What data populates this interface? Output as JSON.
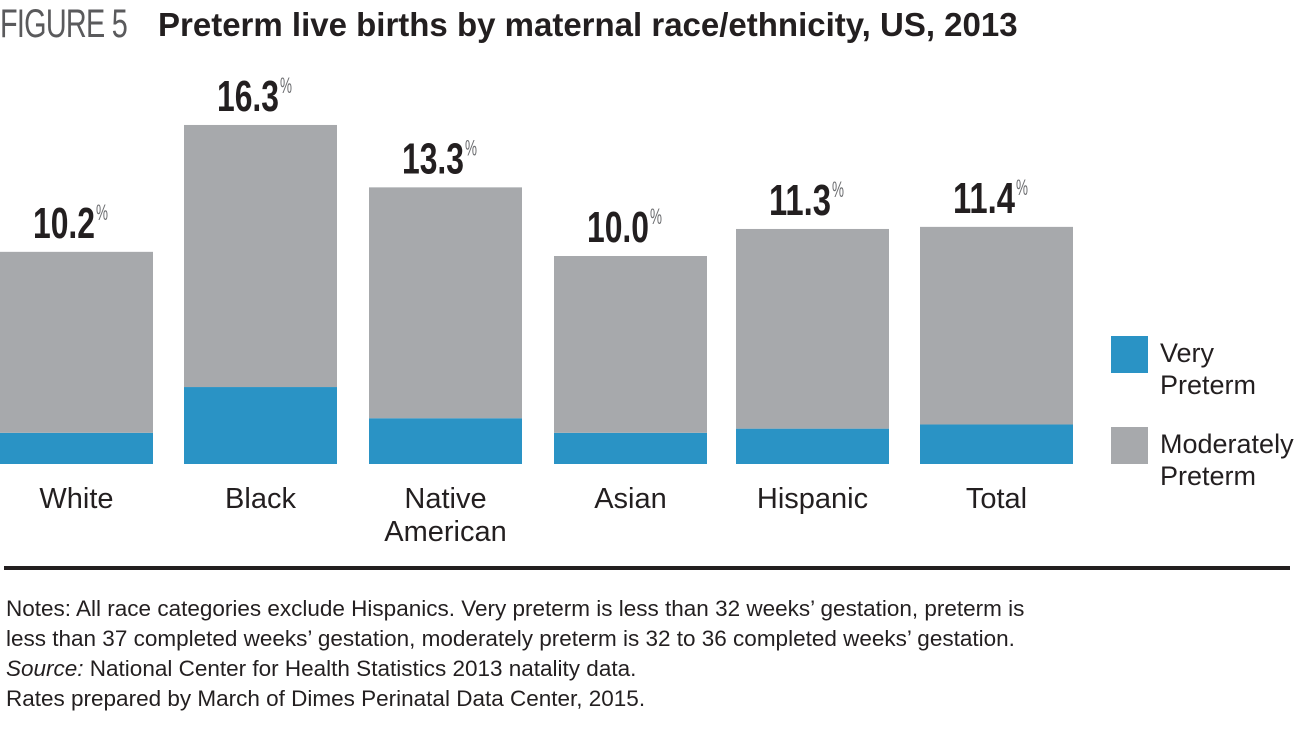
{
  "figure": {
    "label": "FIGURE 5",
    "title": "Preterm live births by maternal race/ethnicity, US, 2013"
  },
  "chart_data": {
    "type": "bar",
    "stacked": true,
    "title": "Preterm live births by maternal race/ethnicity, US, 2013",
    "xlabel": "",
    "ylabel": "",
    "unit": "%",
    "grid": false,
    "ylim": [
      0,
      17
    ],
    "legend_position": "right",
    "categories": [
      "White",
      "Black",
      "Native American",
      "Asian",
      "Hispanic",
      "Total"
    ],
    "category_lines": [
      [
        "White"
      ],
      [
        "Black"
      ],
      [
        "Native",
        "American"
      ],
      [
        "Asian"
      ],
      [
        "Hispanic"
      ],
      [
        "Total"
      ]
    ],
    "totals": [
      10.2,
      16.3,
      13.3,
      10.0,
      11.3,
      11.4
    ],
    "total_labels": [
      "10.2",
      "16.3",
      "13.3",
      "10.0",
      "11.3",
      "11.4"
    ],
    "percent_symbol": "%",
    "series": [
      {
        "name": "Very Preterm",
        "label_lines": [
          "Very",
          "Preterm"
        ],
        "color": "#2a93c5",
        "values": [
          1.5,
          3.7,
          2.2,
          1.5,
          1.7,
          1.9
        ]
      },
      {
        "name": "Moderately Preterm",
        "label_lines": [
          "Moderately",
          "Preterm"
        ],
        "color": "#a7a9ac",
        "values": [
          8.7,
          12.6,
          11.1,
          8.5,
          9.6,
          9.5
        ]
      }
    ]
  },
  "notes": {
    "line1": "Notes: All race categories exclude Hispanics. Very preterm is less than 32 weeks’ gestation, preterm is",
    "line2": "less than 37 completed weeks’ gestation, moderately preterm is 32 to 36 completed weeks’ gestation.",
    "source_label": "Source:",
    "source_text": " National Center for Health Statistics 2013 natality data.",
    "line4": "Rates prepared by March of Dimes Perinatal Data Center, 2015."
  }
}
